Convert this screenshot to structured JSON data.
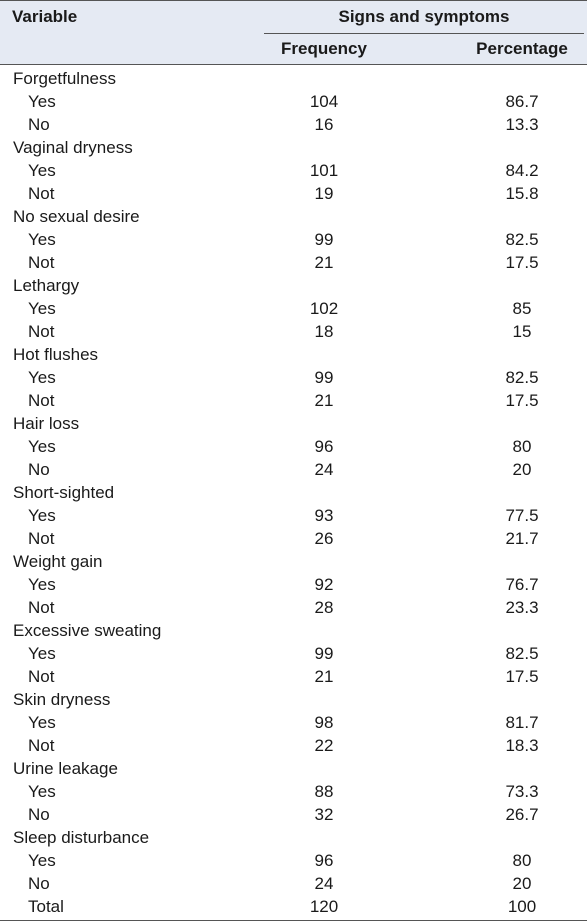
{
  "header": {
    "variable": "Variable",
    "group": "Signs and symptoms",
    "frequency": "Frequency",
    "percentage": "Percentage"
  },
  "rows": [
    {
      "label": "Forgetfulness",
      "type": "category"
    },
    {
      "label": "Yes",
      "type": "sub",
      "frequency": "104",
      "percentage": "86.7"
    },
    {
      "label": "No",
      "type": "sub",
      "frequency": "16",
      "percentage": "13.3"
    },
    {
      "label": "Vaginal dryness",
      "type": "category"
    },
    {
      "label": "Yes",
      "type": "sub",
      "frequency": "101",
      "percentage": "84.2"
    },
    {
      "label": "Not",
      "type": "sub",
      "frequency": "19",
      "percentage": "15.8"
    },
    {
      "label": "No sexual desire",
      "type": "category"
    },
    {
      "label": "Yes",
      "type": "sub",
      "frequency": "99",
      "percentage": "82.5"
    },
    {
      "label": "Not",
      "type": "sub",
      "frequency": "21",
      "percentage": "17.5"
    },
    {
      "label": "Lethargy",
      "type": "category"
    },
    {
      "label": "Yes",
      "type": "sub",
      "frequency": "102",
      "percentage": "85"
    },
    {
      "label": "Not",
      "type": "sub",
      "frequency": "18",
      "percentage": "15"
    },
    {
      "label": "Hot flushes",
      "type": "category"
    },
    {
      "label": "Yes",
      "type": "sub",
      "frequency": "99",
      "percentage": "82.5"
    },
    {
      "label": "Not",
      "type": "sub",
      "frequency": "21",
      "percentage": "17.5"
    },
    {
      "label": "Hair loss",
      "type": "category"
    },
    {
      "label": "Yes",
      "type": "sub",
      "frequency": "96",
      "percentage": "80"
    },
    {
      "label": "No",
      "type": "sub",
      "frequency": "24",
      "percentage": "20"
    },
    {
      "label": "Short-sighted",
      "type": "category"
    },
    {
      "label": "Yes",
      "type": "sub",
      "frequency": "93",
      "percentage": "77.5"
    },
    {
      "label": "Not",
      "type": "sub",
      "frequency": "26",
      "percentage": "21.7"
    },
    {
      "label": "Weight gain",
      "type": "category"
    },
    {
      "label": "Yes",
      "type": "sub",
      "frequency": "92",
      "percentage": "76.7"
    },
    {
      "label": "Not",
      "type": "sub",
      "frequency": "28",
      "percentage": "23.3"
    },
    {
      "label": "Excessive sweating",
      "type": "category"
    },
    {
      "label": "Yes",
      "type": "sub",
      "frequency": "99",
      "percentage": "82.5"
    },
    {
      "label": "Not",
      "type": "sub",
      "frequency": "21",
      "percentage": "17.5"
    },
    {
      "label": "Skin dryness",
      "type": "category"
    },
    {
      "label": "Yes",
      "type": "sub",
      "frequency": "98",
      "percentage": "81.7"
    },
    {
      "label": "Not",
      "type": "sub",
      "frequency": "22",
      "percentage": "18.3"
    },
    {
      "label": "Urine leakage",
      "type": "category"
    },
    {
      "label": "Yes",
      "type": "sub",
      "frequency": "88",
      "percentage": "73.3"
    },
    {
      "label": "No",
      "type": "sub",
      "frequency": "32",
      "percentage": "26.7"
    },
    {
      "label": "Sleep disturbance",
      "type": "category"
    },
    {
      "label": "Yes",
      "type": "sub",
      "frequency": "96",
      "percentage": "80"
    },
    {
      "label": "No",
      "type": "sub",
      "frequency": "24",
      "percentage": "20"
    },
    {
      "label": "Total",
      "type": "sub",
      "frequency": "120",
      "percentage": "100"
    }
  ]
}
